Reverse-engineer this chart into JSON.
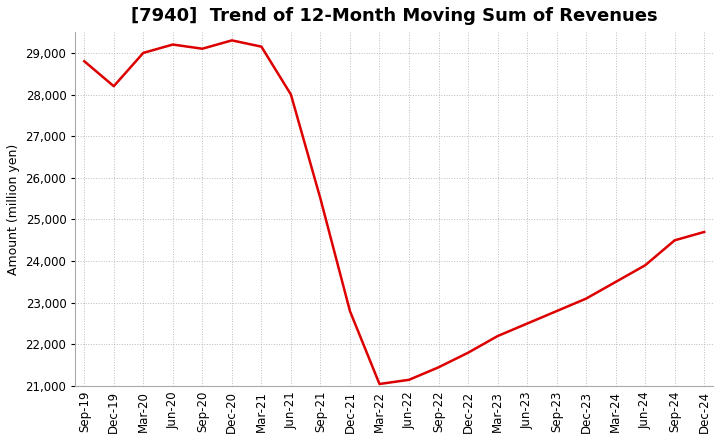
{
  "title": "[7940]  Trend of 12-Month Moving Sum of Revenues",
  "ylabel": "Amount (million yen)",
  "background_color": "#ffffff",
  "grid_color": "#bbbbbb",
  "line_color": "#dd0000",
  "x_labels": [
    "Sep-19",
    "Dec-19",
    "Mar-20",
    "Jun-20",
    "Sep-20",
    "Dec-20",
    "Mar-21",
    "Jun-21",
    "Sep-21",
    "Dec-21",
    "Mar-22",
    "Jun-22",
    "Sep-22",
    "Dec-22",
    "Mar-23",
    "Jun-23",
    "Sep-23",
    "Dec-23",
    "Mar-24",
    "Jun-24",
    "Sep-24",
    "Dec-24"
  ],
  "values": [
    28800,
    28200,
    29000,
    29200,
    29100,
    29300,
    29150,
    28000,
    25500,
    22800,
    21050,
    21150,
    21450,
    21800,
    22200,
    22500,
    22800,
    23100,
    23500,
    23900,
    24500,
    24700
  ],
  "ylim": [
    21000,
    29500
  ],
  "yticks": [
    21000,
    22000,
    23000,
    24000,
    25000,
    26000,
    27000,
    28000,
    29000
  ],
  "title_fontsize": 13,
  "label_fontsize": 9,
  "tick_fontsize": 8.5
}
